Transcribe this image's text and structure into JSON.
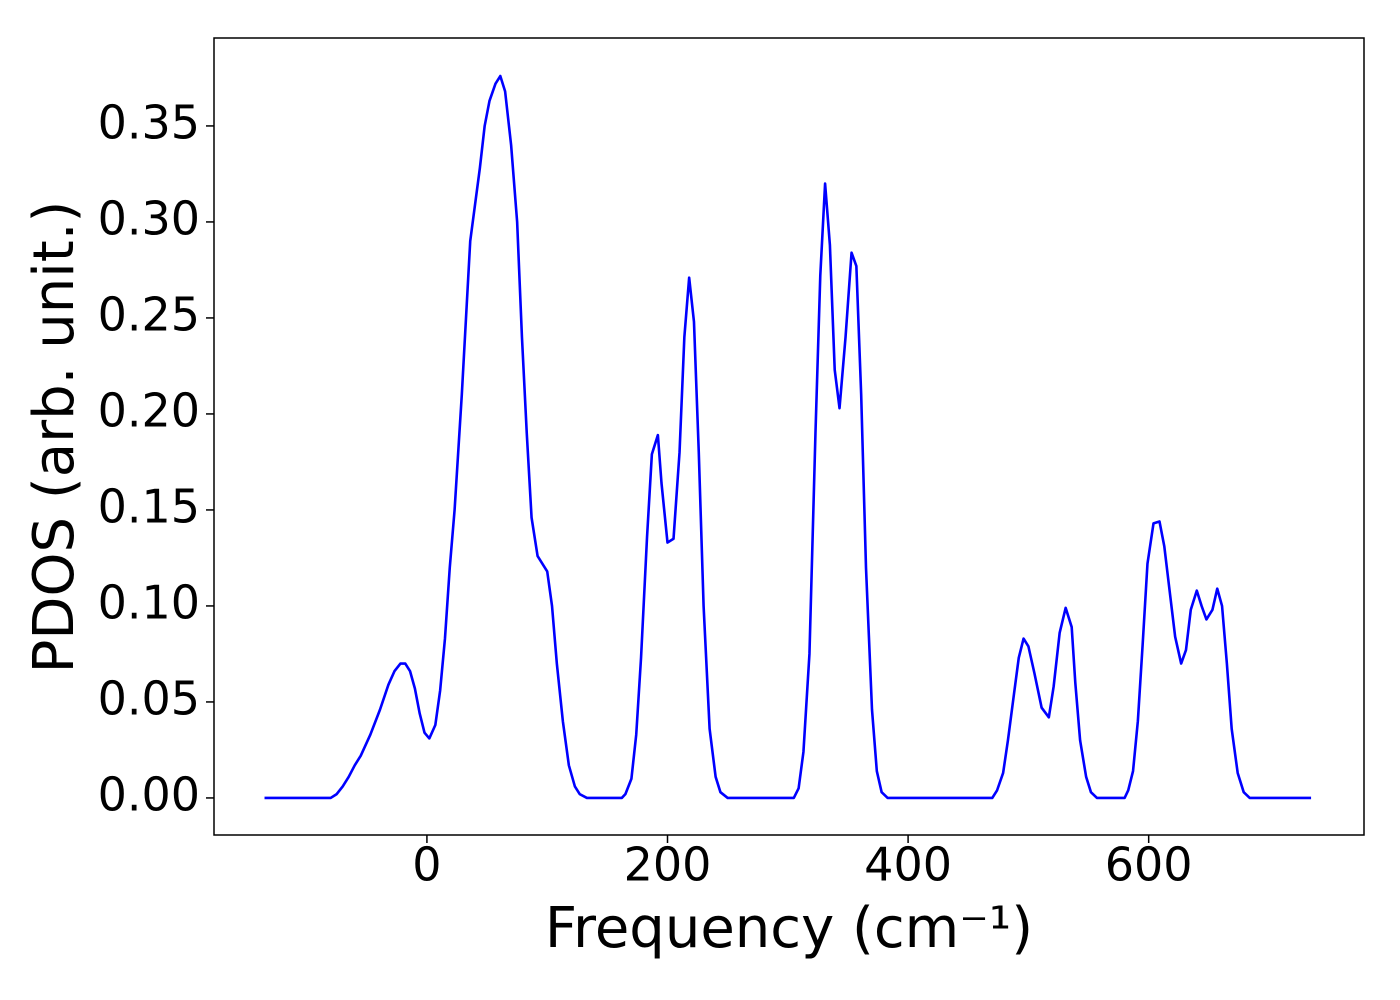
{
  "chart_data": {
    "type": "line",
    "xlabel": "Frequency (cm⁻¹)",
    "ylabel": "PDOS (arb. unit.)",
    "xlim": [
      -177,
      779
    ],
    "ylim": [
      -0.0193,
      0.3958
    ],
    "xticks": [
      0,
      200,
      400,
      600
    ],
    "yticks": [
      {
        "value": 0,
        "label": "0.00"
      },
      {
        "value": 0.05,
        "label": "0.05"
      },
      {
        "value": 0.1,
        "label": "0.10"
      },
      {
        "value": 0.15,
        "label": "0.15"
      },
      {
        "value": 0.2,
        "label": "0.20"
      },
      {
        "value": 0.25,
        "label": "0.25"
      },
      {
        "value": 0.3,
        "label": "0.30"
      },
      {
        "value": 0.35,
        "label": "0.35"
      }
    ],
    "grid": false,
    "series": [
      {
        "color": "#0000ff",
        "x": [
          -135,
          -80,
          -75,
          -70,
          -65,
          -60,
          -55,
          -47,
          -39,
          -32,
          -27,
          -22,
          -18,
          -14,
          -10,
          -6,
          -2,
          2,
          7,
          11,
          15,
          19,
          23,
          29,
          36,
          44,
          48,
          52,
          57,
          61,
          65,
          70,
          75,
          79,
          83,
          87,
          92,
          100,
          104,
          108,
          113,
          118,
          123,
          127,
          133,
          162,
          165,
          170,
          174,
          178,
          183,
          187,
          192,
          195,
          200,
          205,
          210,
          214,
          218,
          222,
          226,
          230,
          235,
          240,
          244,
          250,
          305,
          309,
          313,
          318,
          323,
          327,
          331,
          335,
          339,
          343,
          348,
          353,
          357,
          361,
          365,
          370,
          374,
          378,
          383,
          470,
          474,
          479,
          483,
          488,
          492,
          496,
          500,
          505,
          511,
          517,
          521,
          526,
          531,
          536,
          539,
          543,
          548,
          552,
          557,
          580,
          583,
          587,
          591,
          595,
          599,
          604,
          609,
          613,
          617,
          622,
          627,
          631,
          635,
          640,
          644,
          648,
          653,
          657,
          661,
          665,
          669,
          674,
          679,
          684,
          735
        ],
        "values": [
          0,
          0,
          0.002,
          0.006,
          0.011,
          0.017,
          0.022,
          0.033,
          0.046,
          0.059,
          0.066,
          0.07,
          0.07,
          0.066,
          0.057,
          0.044,
          0.034,
          0.031,
          0.038,
          0.056,
          0.083,
          0.12,
          0.15,
          0.21,
          0.29,
          0.328,
          0.35,
          0.363,
          0.372,
          0.376,
          0.368,
          0.34,
          0.3,
          0.24,
          0.19,
          0.146,
          0.126,
          0.118,
          0.1,
          0.07,
          0.04,
          0.017,
          0.006,
          0.002,
          0,
          0,
          0.002,
          0.01,
          0.033,
          0.073,
          0.136,
          0.179,
          0.189,
          0.164,
          0.133,
          0.135,
          0.18,
          0.24,
          0.271,
          0.248,
          0.18,
          0.1,
          0.036,
          0.011,
          0.003,
          0,
          0,
          0.005,
          0.024,
          0.075,
          0.19,
          0.272,
          0.32,
          0.288,
          0.223,
          0.203,
          0.24,
          0.284,
          0.277,
          0.21,
          0.12,
          0.046,
          0.014,
          0.003,
          0,
          0,
          0.004,
          0.013,
          0.03,
          0.054,
          0.073,
          0.083,
          0.079,
          0.065,
          0.047,
          0.042,
          0.058,
          0.086,
          0.099,
          0.089,
          0.06,
          0.03,
          0.011,
          0.003,
          0,
          0,
          0.004,
          0.014,
          0.04,
          0.08,
          0.122,
          0.143,
          0.144,
          0.131,
          0.11,
          0.084,
          0.07,
          0.077,
          0.098,
          0.108,
          0.1,
          0.093,
          0.098,
          0.109,
          0.1,
          0.07,
          0.036,
          0.013,
          0.003,
          0,
          0
        ]
      }
    ]
  }
}
